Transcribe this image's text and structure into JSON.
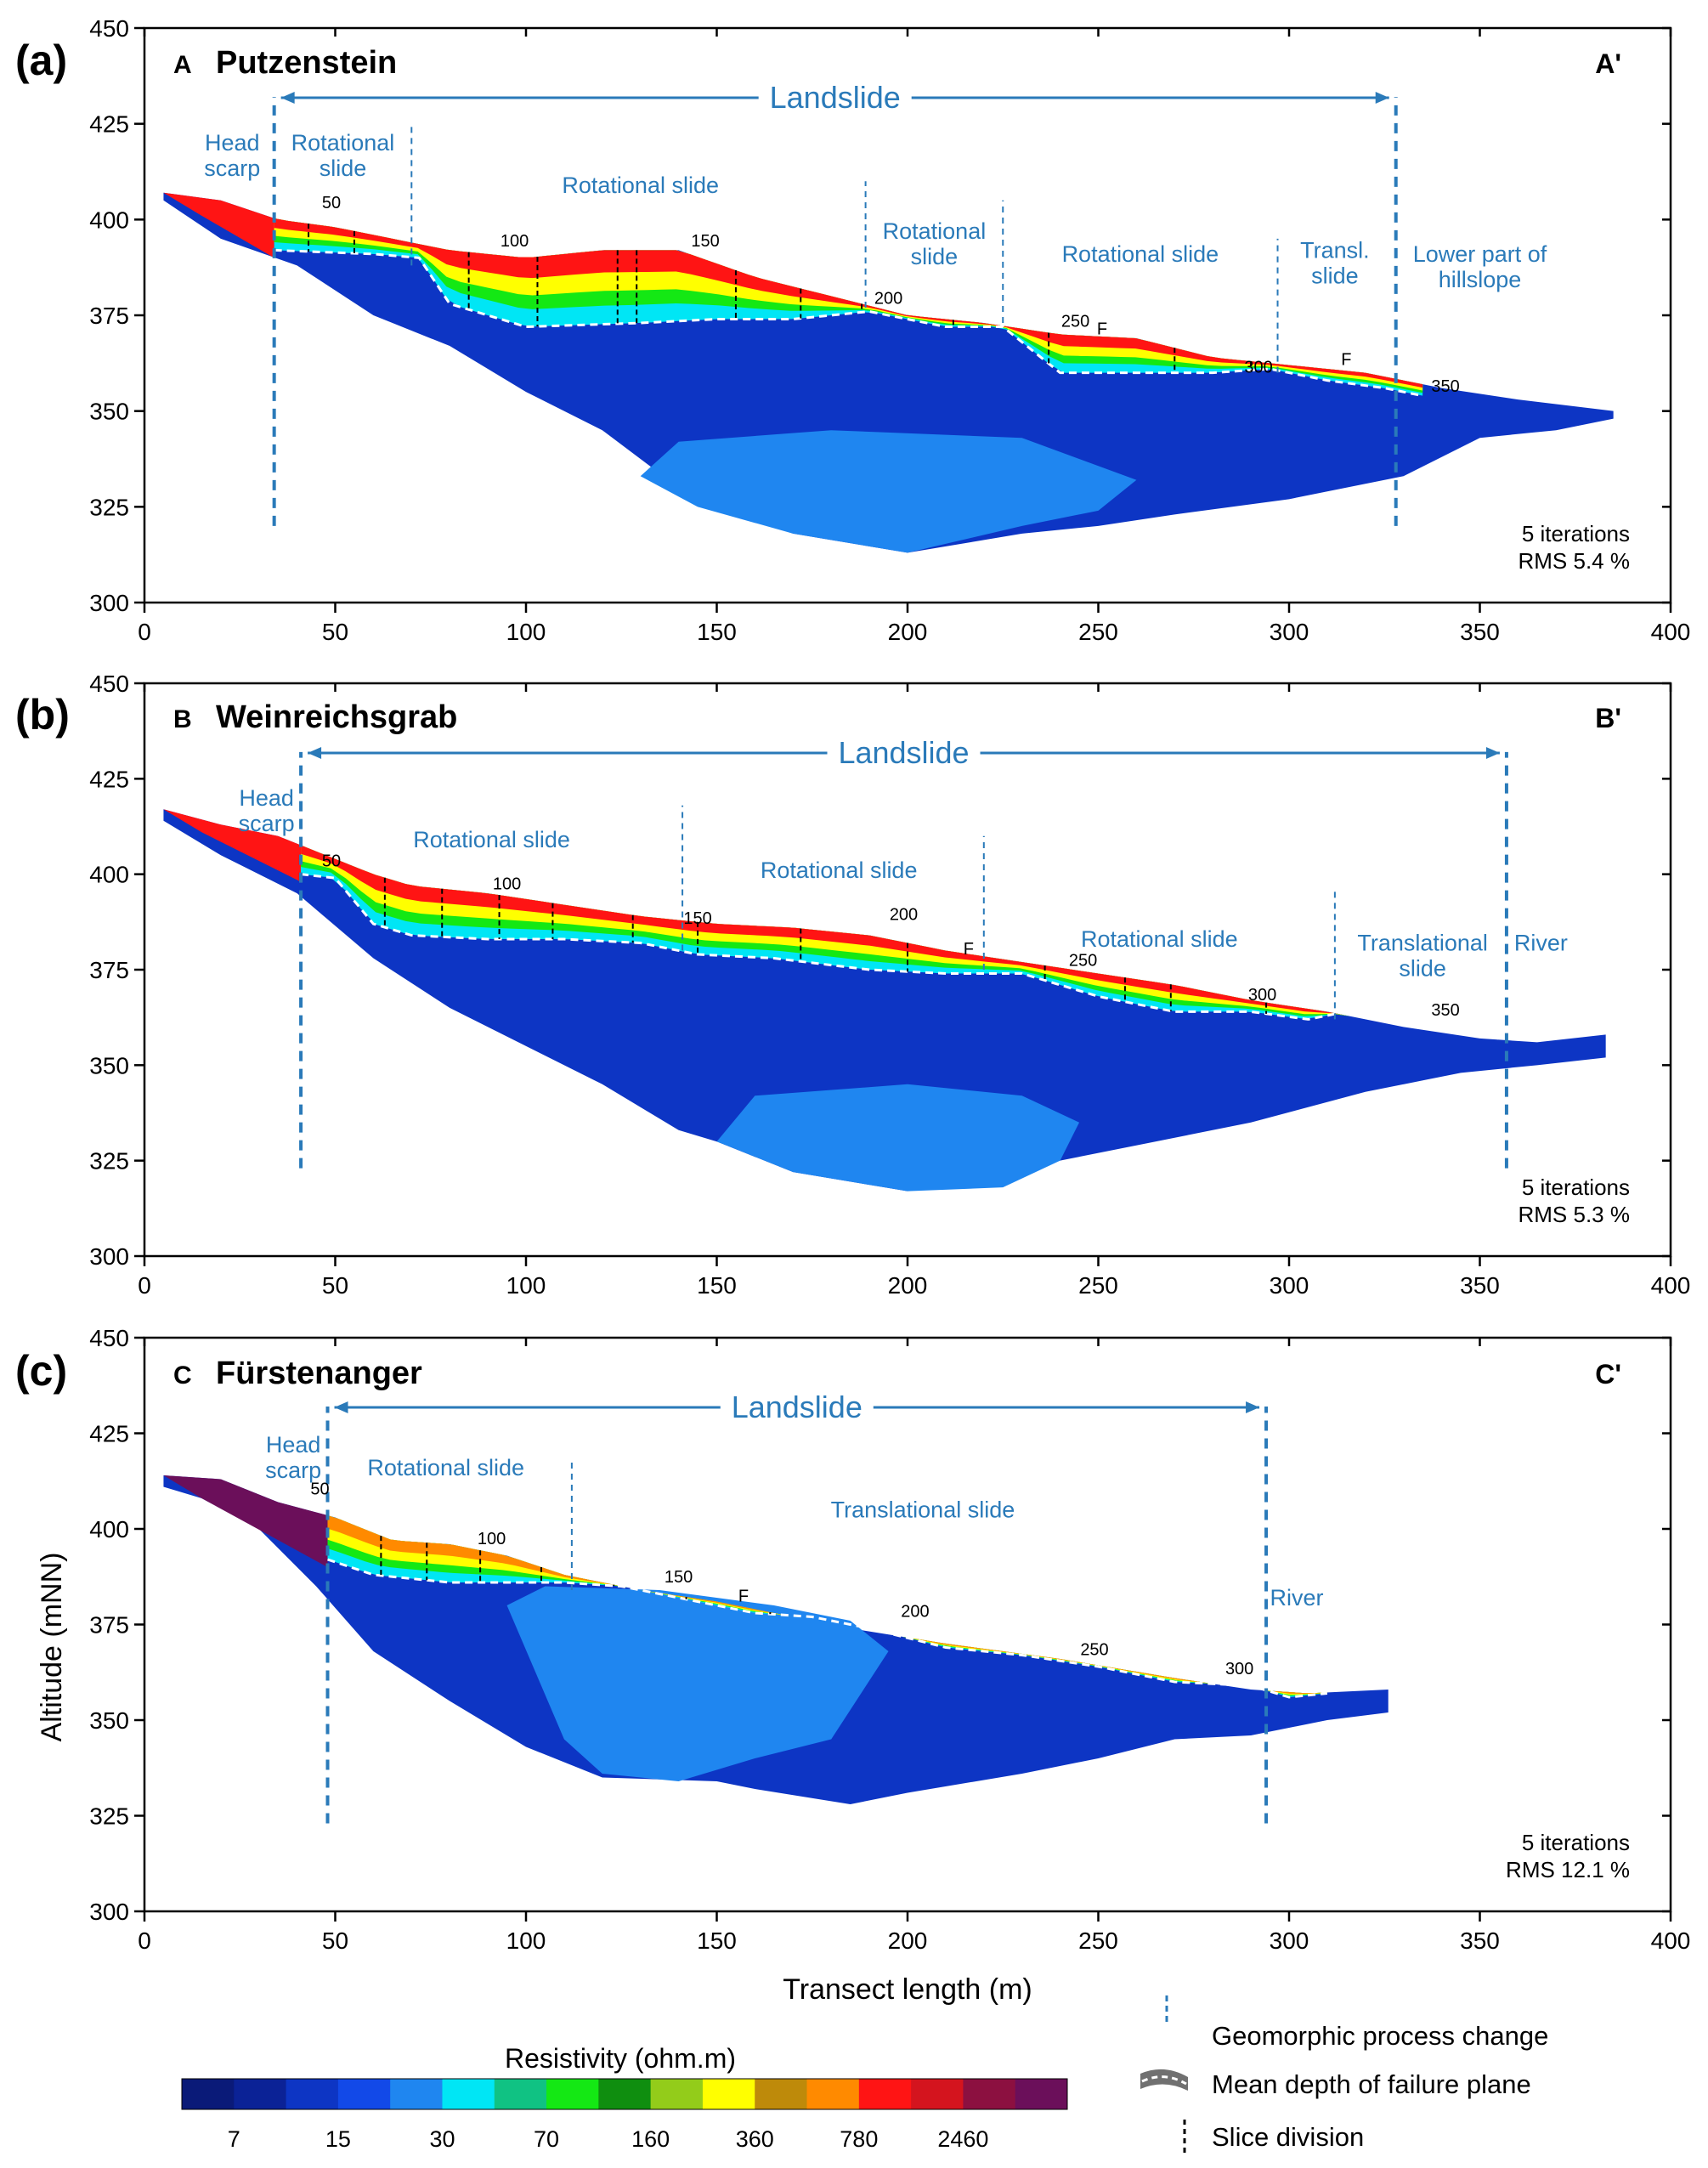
{
  "figure": {
    "x_axis_label": "Transect length (m)",
    "y_axis_label": "Altitude (mNN)",
    "colors": {
      "annotation": "#2a7ab9",
      "resistivity_scale": [
        "#0a1a78",
        "#0b2296",
        "#0d35c4",
        "#1249e8",
        "#1f86f0",
        "#00e6f5",
        "#10c283",
        "#14e814",
        "#0f8e0f",
        "#93cc1a",
        "#ffff00",
        "#be8a0a",
        "#ff8a00",
        "#ff1414",
        "#d4141e",
        "#8c1040",
        "#6b0f5a"
      ],
      "background_layer": "#0d35c4",
      "deep_layer": "#1f86f0",
      "top_layer": "#ff1414"
    }
  },
  "legend": {
    "title": "Resistivity (ohm.m)",
    "ticks": [
      "7",
      "15",
      "30",
      "70",
      "160",
      "360",
      "780",
      "2460"
    ],
    "symbols": [
      {
        "label": "Geomorphic process change",
        "icon": "blue-dashed-vertical"
      },
      {
        "label": "Mean depth of failure plane",
        "icon": "white-dashed-gray-band"
      },
      {
        "label": "Slice division",
        "icon": "black-dashed-vertical"
      }
    ]
  },
  "chart_data": [
    {
      "type": "heatmap",
      "panel": "(a)",
      "start_label": "A",
      "site": "Putzenstein",
      "end_label": "A'",
      "xlim": [
        0,
        400
      ],
      "ylim": [
        300,
        450
      ],
      "xticks": [
        0,
        50,
        100,
        150,
        200,
        250,
        300,
        350,
        400
      ],
      "yticks": [
        300,
        325,
        350,
        375,
        400,
        425,
        450
      ],
      "landslide": {
        "label": "Landslide",
        "x": [
          34,
          328
        ]
      },
      "process_change_lines": [
        {
          "x": 34,
          "y": [
            320,
            432
          ],
          "major": true
        },
        {
          "x": 70,
          "y": [
            388,
            425
          ],
          "major": false
        },
        {
          "x": 189,
          "y": [
            377,
            410
          ],
          "major": false
        },
        {
          "x": 225,
          "y": [
            373,
            405
          ],
          "major": false
        },
        {
          "x": 297,
          "y": [
            360,
            395
          ],
          "major": false
        },
        {
          "x": 328,
          "y": [
            320,
            432
          ],
          "major": true
        }
      ],
      "zone_labels": [
        {
          "lines": [
            "Head",
            "scarp"
          ],
          "x": 23,
          "y": 418
        },
        {
          "lines": [
            "Rotational",
            "slide"
          ],
          "x": 52,
          "y": 418
        },
        {
          "lines": [
            "Rotational slide"
          ],
          "x": 130,
          "y": 407
        },
        {
          "lines": [
            "Rotational",
            "slide"
          ],
          "x": 207,
          "y": 395
        },
        {
          "lines": [
            "Rotational slide"
          ],
          "x": 261,
          "y": 389
        },
        {
          "lines": [
            "Transl.",
            "slide"
          ],
          "x": 312,
          "y": 390
        },
        {
          "lines": [
            "Lower part of",
            "hillslope"
          ],
          "x": 350,
          "y": 389
        }
      ],
      "surface_distance_labels": [
        {
          "text": "50",
          "x": 49,
          "y": 403
        },
        {
          "text": "100",
          "x": 97,
          "y": 393
        },
        {
          "text": "150",
          "x": 147,
          "y": 393
        },
        {
          "text": "200",
          "x": 195,
          "y": 378
        },
        {
          "text": "250",
          "x": 244,
          "y": 372
        },
        {
          "text": "F",
          "x": 251,
          "y": 370
        },
        {
          "text": "300",
          "x": 292,
          "y": 360
        },
        {
          "text": "F",
          "x": 315,
          "y": 362
        },
        {
          "text": "350",
          "x": 341,
          "y": 355
        }
      ],
      "surface": {
        "x": [
          5,
          20,
          35,
          50,
          65,
          80,
          100,
          120,
          140,
          160,
          180,
          200,
          220,
          240,
          260,
          280,
          300,
          320,
          340,
          360,
          385
        ],
        "y": [
          407,
          405,
          400,
          398,
          395,
          392,
          390,
          392,
          392,
          385,
          380,
          375,
          373,
          370,
          369,
          364,
          362,
          360,
          356,
          353,
          350
        ]
      },
      "profile_bottom": {
        "x": [
          385,
          370,
          350,
          330,
          300,
          270,
          250,
          230,
          200,
          170,
          150,
          140,
          120,
          100,
          80,
          60,
          40,
          20,
          5
        ],
        "y": [
          348,
          345,
          343,
          333,
          327,
          323,
          320,
          318,
          313,
          318,
          325,
          330,
          345,
          355,
          367,
          375,
          388,
          395,
          405
        ]
      },
      "deep_zone": {
        "x": [
          130,
          140,
          180,
          230,
          260,
          250,
          230,
          200,
          170,
          145
        ],
        "y": [
          333,
          342,
          345,
          343,
          332,
          324,
          320,
          313,
          318,
          325
        ]
      },
      "failure_plane": {
        "x": [
          34,
          60,
          72,
          80,
          100,
          130,
          150,
          170,
          190,
          210,
          225,
          240,
          260,
          280,
          295,
          310,
          325,
          335
        ],
        "y": [
          392,
          391,
          390,
          378,
          372,
          373,
          374,
          374,
          376,
          372,
          372,
          360,
          360,
          360,
          361,
          358,
          356,
          354
        ]
      },
      "slice_divisions_x": [
        43,
        55,
        85,
        103,
        124,
        129,
        155,
        172,
        188,
        212,
        237,
        270,
        290
      ],
      "stats": {
        "iterations": "5 iterations",
        "rms": "RMS 5.4 %"
      }
    },
    {
      "type": "heatmap",
      "panel": "(b)",
      "start_label": "B",
      "site": "Weinreichsgrab",
      "end_label": "B'",
      "xlim": [
        0,
        400
      ],
      "ylim": [
        300,
        450
      ],
      "xticks": [
        0,
        50,
        100,
        150,
        200,
        250,
        300,
        350,
        400
      ],
      "yticks": [
        300,
        325,
        350,
        375,
        400,
        425,
        450
      ],
      "landslide": {
        "label": "Landslide",
        "x": [
          41,
          357
        ]
      },
      "process_change_lines": [
        {
          "x": 41,
          "y": [
            323,
            432
          ],
          "major": true
        },
        {
          "x": 141,
          "y": [
            380,
            418
          ],
          "major": false
        },
        {
          "x": 220,
          "y": [
            375,
            410
          ],
          "major": false
        },
        {
          "x": 312,
          "y": [
            362,
            396
          ],
          "major": false
        },
        {
          "x": 357,
          "y": [
            323,
            432
          ],
          "major": true
        }
      ],
      "zone_labels": [
        {
          "lines": [
            "Head",
            "scarp"
          ],
          "x": 32,
          "y": 418
        },
        {
          "lines": [
            "Rotational slide"
          ],
          "x": 91,
          "y": 407
        },
        {
          "lines": [
            "Rotational slide"
          ],
          "x": 182,
          "y": 399
        },
        {
          "lines": [
            "Rotational slide"
          ],
          "x": 266,
          "y": 381
        },
        {
          "lines": [
            "Translational",
            "slide"
          ],
          "x": 335,
          "y": 380
        },
        {
          "lines": [
            "River"
          ],
          "x": 366,
          "y": 380
        }
      ],
      "surface_distance_labels": [
        {
          "text": "50",
          "x": 49,
          "y": 402
        },
        {
          "text": "100",
          "x": 95,
          "y": 396
        },
        {
          "text": "150",
          "x": 145,
          "y": 387
        },
        {
          "text": "200",
          "x": 199,
          "y": 388
        },
        {
          "text": "F",
          "x": 216,
          "y": 379
        },
        {
          "text": "250",
          "x": 246,
          "y": 376
        },
        {
          "text": "300",
          "x": 293,
          "y": 367
        },
        {
          "text": "350",
          "x": 341,
          "y": 363
        }
      ],
      "surface": {
        "x": [
          5,
          20,
          35,
          50,
          60,
          70,
          90,
          110,
          130,
          150,
          170,
          190,
          210,
          230,
          250,
          270,
          290,
          310,
          330,
          350,
          365,
          383
        ],
        "y": [
          417,
          413,
          410,
          404,
          400,
          397,
          395,
          392,
          389,
          387,
          386,
          384,
          380,
          377,
          374,
          371,
          367,
          364,
          360,
          357,
          356,
          358
        ]
      },
      "profile_bottom": {
        "x": [
          383,
          365,
          345,
          320,
          290,
          265,
          240,
          225,
          200,
          170,
          150,
          140,
          120,
          100,
          80,
          60,
          40,
          20,
          5
        ],
        "y": [
          352,
          350,
          348,
          343,
          335,
          330,
          325,
          322,
          317,
          322,
          330,
          333,
          345,
          355,
          365,
          378,
          395,
          405,
          414
        ]
      },
      "deep_zone": {
        "x": [
          150,
          160,
          200,
          230,
          245,
          240,
          225,
          200,
          170,
          155
        ],
        "y": [
          330,
          342,
          345,
          342,
          335,
          325,
          318,
          317,
          322,
          328
        ]
      },
      "failure_plane": {
        "x": [
          41,
          50,
          60,
          70,
          90,
          110,
          130,
          145,
          165,
          190,
          210,
          230,
          250,
          270,
          290,
          305,
          315,
          330,
          355
        ],
        "y": [
          400,
          399,
          387,
          384,
          383,
          383,
          382,
          379,
          378,
          375,
          374,
          374,
          368,
          364,
          364,
          362,
          364,
          361,
          357
        ]
      },
      "slice_divisions_x": [
        63,
        78,
        93,
        107,
        128,
        145,
        172,
        200,
        236,
        257,
        269,
        294
      ],
      "stats": {
        "iterations": "5 iterations",
        "rms": "RMS 5.3 %"
      }
    },
    {
      "type": "heatmap",
      "panel": "(c)",
      "start_label": "C",
      "site": "Fürstenanger",
      "end_label": "C'",
      "xlim": [
        0,
        400
      ],
      "ylim": [
        300,
        450
      ],
      "xticks": [
        0,
        50,
        100,
        150,
        200,
        250,
        300,
        350,
        400
      ],
      "yticks": [
        300,
        325,
        350,
        375,
        400,
        425,
        450
      ],
      "landslide": {
        "label": "Landslide",
        "x": [
          48,
          294
        ]
      },
      "process_change_lines": [
        {
          "x": 48,
          "y": [
            323,
            432
          ],
          "major": true
        },
        {
          "x": 112,
          "y": [
            384,
            418
          ],
          "major": false
        },
        {
          "x": 294,
          "y": [
            323,
            432
          ],
          "major": true
        }
      ],
      "zone_labels": [
        {
          "lines": [
            "Head",
            "scarp"
          ],
          "x": 39,
          "y": 420
        },
        {
          "lines": [
            "Rotational slide"
          ],
          "x": 79,
          "y": 414
        },
        {
          "lines": [
            "Translational slide"
          ],
          "x": 204,
          "y": 403
        },
        {
          "lines": [
            "River"
          ],
          "x": 302,
          "y": 380
        }
      ],
      "surface_distance_labels": [
        {
          "text": "50",
          "x": 46,
          "y": 409
        },
        {
          "text": "100",
          "x": 91,
          "y": 396
        },
        {
          "text": "150",
          "x": 140,
          "y": 386
        },
        {
          "text": "F",
          "x": 157,
          "y": 381
        },
        {
          "text": "200",
          "x": 202,
          "y": 377
        },
        {
          "text": "250",
          "x": 249,
          "y": 367
        },
        {
          "text": "300",
          "x": 287,
          "y": 362
        }
      ],
      "surface": {
        "x": [
          5,
          20,
          35,
          50,
          65,
          80,
          95,
          110,
          130,
          150,
          165,
          185,
          210,
          240,
          270,
          290,
          305,
          326
        ],
        "y": [
          414,
          413,
          407,
          403,
          397,
          396,
          393,
          388,
          384,
          381,
          378,
          374,
          370,
          366,
          361,
          358,
          357,
          358
        ]
      },
      "profile_bottom": {
        "x": [
          326,
          310,
          290,
          270,
          250,
          230,
          200,
          185,
          160,
          150,
          120,
          100,
          80,
          60,
          45,
          30,
          15,
          5
        ],
        "y": [
          352,
          350,
          346,
          345,
          340,
          336,
          331,
          328,
          332,
          334,
          335,
          343,
          355,
          368,
          385,
          400,
          408,
          411
        ]
      },
      "deep_zone": {
        "x": [
          95,
          105,
          135,
          165,
          185,
          195,
          180,
          160,
          140,
          120,
          110
        ],
        "y": [
          380,
          385,
          384,
          380,
          376,
          368,
          345,
          340,
          334,
          336,
          345
        ]
      },
      "failure_plane": {
        "x": [
          48,
          60,
          80,
          100,
          110,
          125,
          140,
          160,
          175,
          190,
          210,
          230,
          250,
          270,
          290,
          300,
          310
        ],
        "y": [
          392,
          388,
          386,
          386,
          386,
          385,
          382,
          378,
          377,
          374,
          369,
          367,
          364,
          360,
          359,
          356,
          357
        ]
      },
      "slice_divisions_x": [
        62,
        74,
        88,
        104,
        123,
        142,
        164
      ],
      "stats": {
        "iterations": "5 iterations",
        "rms": "RMS 12.1 %"
      }
    }
  ]
}
